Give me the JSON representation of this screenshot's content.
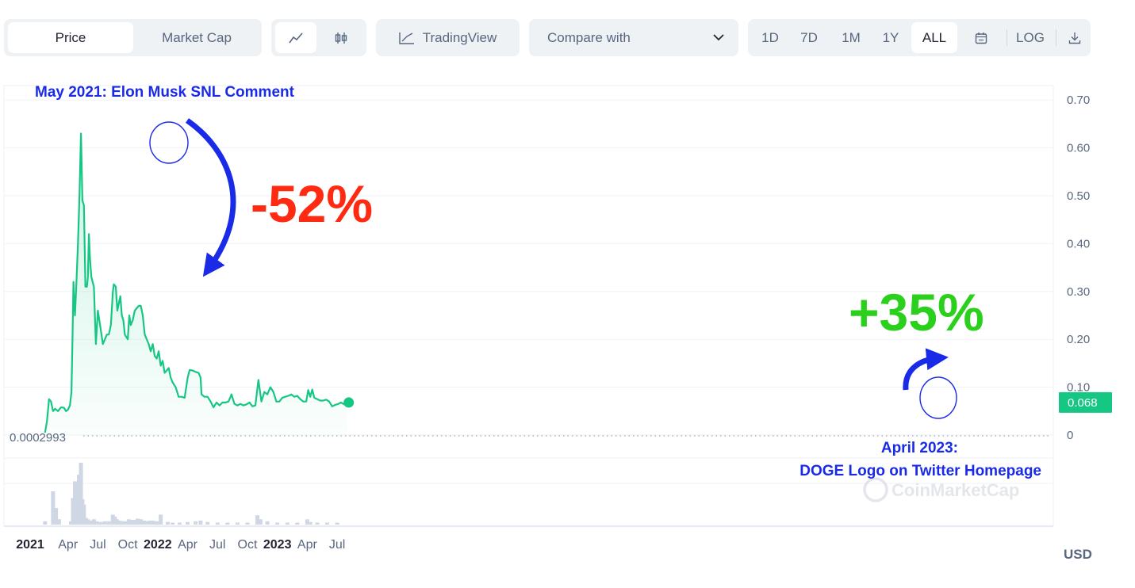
{
  "toolbar": {
    "tab_price": "Price",
    "tab_market_cap": "Market Cap",
    "tradingview_label": "TradingView",
    "compare_label": "Compare with",
    "ranges": [
      "1D",
      "7D",
      "1M",
      "1Y",
      "ALL"
    ],
    "range_active": "ALL",
    "log_label": "LOG"
  },
  "annotations": {
    "top_left": "May 2021: Elon Musk SNL Comment",
    "drop_pct": "-52%",
    "rise_pct": "+35%",
    "bottom_right_line1": "April 2023:",
    "bottom_right_line2": "DOGE Logo on Twitter Homepage",
    "annotation_blue": "#1a2be8",
    "drop_color": "#ff2a12",
    "rise_color": "#2ad01c"
  },
  "watermark": "CoinMarketCap",
  "chart_data": {
    "type": "area",
    "currency_label": "USD",
    "y_ticks": [
      "0",
      "0.10",
      "0.20",
      "0.30",
      "0.40",
      "0.50",
      "0.60",
      "0.70"
    ],
    "ylim": [
      0,
      0.7
    ],
    "min_label": "0.0002993",
    "current_price_label": "0.068",
    "current_price": 0.068,
    "line_color": "#16c784",
    "x_ticks": [
      {
        "label": "2021",
        "bold": true,
        "t": 0
      },
      {
        "label": "Apr",
        "bold": false,
        "t": 3
      },
      {
        "label": "Jul",
        "bold": false,
        "t": 6
      },
      {
        "label": "Oct",
        "bold": false,
        "t": 9
      },
      {
        "label": "2022",
        "bold": true,
        "t": 12
      },
      {
        "label": "Apr",
        "bold": false,
        "t": 15
      },
      {
        "label": "Jul",
        "bold": false,
        "t": 18
      },
      {
        "label": "Oct",
        "bold": false,
        "t": 21
      },
      {
        "label": "2023",
        "bold": true,
        "t": 24
      },
      {
        "label": "Apr",
        "bold": false,
        "t": 27
      },
      {
        "label": "Jul",
        "bold": false,
        "t": 30
      }
    ],
    "price_points": [
      [
        0.7,
        0.005
      ],
      [
        0.9,
        0.03
      ],
      [
        1.1,
        0.075
      ],
      [
        1.3,
        0.07
      ],
      [
        1.5,
        0.05
      ],
      [
        1.7,
        0.055
      ],
      [
        2.0,
        0.05
      ],
      [
        2.3,
        0.058
      ],
      [
        2.6,
        0.057
      ],
      [
        2.8,
        0.05
      ],
      [
        3.0,
        0.053
      ],
      [
        3.2,
        0.062
      ],
      [
        3.35,
        0.09
      ],
      [
        3.45,
        0.2
      ],
      [
        3.55,
        0.32
      ],
      [
        3.7,
        0.25
      ],
      [
        3.85,
        0.32
      ],
      [
        4.0,
        0.4
      ],
      [
        4.15,
        0.5
      ],
      [
        4.3,
        0.63
      ],
      [
        4.45,
        0.49
      ],
      [
        4.6,
        0.48
      ],
      [
        4.75,
        0.31
      ],
      [
        4.9,
        0.31
      ],
      [
        5.0,
        0.33
      ],
      [
        5.1,
        0.42
      ],
      [
        5.2,
        0.37
      ],
      [
        5.35,
        0.33
      ],
      [
        5.6,
        0.31
      ],
      [
        5.8,
        0.19
      ],
      [
        6.0,
        0.26
      ],
      [
        6.25,
        0.225
      ],
      [
        6.5,
        0.19
      ],
      [
        6.7,
        0.2
      ],
      [
        6.9,
        0.21
      ],
      [
        7.1,
        0.21
      ],
      [
        7.3,
        0.23
      ],
      [
        7.5,
        0.3
      ],
      [
        7.6,
        0.315
      ],
      [
        7.8,
        0.31
      ],
      [
        7.95,
        0.26
      ],
      [
        8.1,
        0.275
      ],
      [
        8.25,
        0.29
      ],
      [
        8.4,
        0.25
      ],
      [
        8.55,
        0.24
      ],
      [
        8.7,
        0.21
      ],
      [
        8.85,
        0.205
      ],
      [
        9.0,
        0.2
      ],
      [
        9.15,
        0.25
      ],
      [
        9.3,
        0.23
      ],
      [
        9.5,
        0.24
      ],
      [
        9.7,
        0.26
      ],
      [
        9.9,
        0.265
      ],
      [
        10.1,
        0.27
      ],
      [
        10.3,
        0.27
      ],
      [
        10.5,
        0.25
      ],
      [
        10.7,
        0.21
      ],
      [
        10.9,
        0.2
      ],
      [
        11.1,
        0.19
      ],
      [
        11.3,
        0.175
      ],
      [
        11.5,
        0.19
      ],
      [
        11.7,
        0.165
      ],
      [
        11.9,
        0.16
      ],
      [
        12.1,
        0.175
      ],
      [
        12.3,
        0.145
      ],
      [
        12.5,
        0.155
      ],
      [
        12.7,
        0.13
      ],
      [
        12.9,
        0.135
      ],
      [
        13.1,
        0.14
      ],
      [
        13.3,
        0.12
      ],
      [
        13.5,
        0.11
      ],
      [
        13.8,
        0.1
      ],
      [
        14.1,
        0.08
      ],
      [
        14.4,
        0.08
      ],
      [
        14.7,
        0.078
      ],
      [
        15.0,
        0.12
      ],
      [
        15.2,
        0.136
      ],
      [
        15.5,
        0.135
      ],
      [
        15.8,
        0.132
      ],
      [
        16.1,
        0.13
      ],
      [
        16.3,
        0.12
      ],
      [
        16.4,
        0.085
      ],
      [
        16.7,
        0.08
      ],
      [
        17.0,
        0.08
      ],
      [
        17.3,
        0.07
      ],
      [
        17.6,
        0.058
      ],
      [
        17.9,
        0.068
      ],
      [
        18.2,
        0.062
      ],
      [
        18.5,
        0.068
      ],
      [
        18.8,
        0.068
      ],
      [
        19.1,
        0.07
      ],
      [
        19.4,
        0.085
      ],
      [
        19.7,
        0.065
      ],
      [
        20.0,
        0.062
      ],
      [
        20.3,
        0.065
      ],
      [
        20.6,
        0.062
      ],
      [
        20.9,
        0.064
      ],
      [
        21.2,
        0.068
      ],
      [
        21.5,
        0.06
      ],
      [
        21.8,
        0.062
      ],
      [
        22.1,
        0.115
      ],
      [
        22.4,
        0.07
      ],
      [
        22.7,
        0.09
      ],
      [
        23.0,
        0.085
      ],
      [
        23.3,
        0.1
      ],
      [
        23.6,
        0.09
      ],
      [
        23.9,
        0.07
      ],
      [
        24.2,
        0.07
      ],
      [
        24.5,
        0.078
      ],
      [
        24.8,
        0.08
      ],
      [
        25.1,
        0.082
      ],
      [
        25.4,
        0.085
      ],
      [
        25.7,
        0.08
      ],
      [
        26.0,
        0.082
      ],
      [
        26.3,
        0.075
      ],
      [
        26.6,
        0.07
      ],
      [
        26.9,
        0.07
      ],
      [
        27.1,
        0.094
      ],
      [
        27.3,
        0.08
      ],
      [
        27.5,
        0.095
      ],
      [
        27.7,
        0.078
      ],
      [
        28.0,
        0.075
      ],
      [
        28.3,
        0.072
      ],
      [
        28.6,
        0.072
      ],
      [
        28.9,
        0.074
      ],
      [
        29.2,
        0.07
      ],
      [
        29.5,
        0.06
      ],
      [
        29.8,
        0.063
      ],
      [
        30.1,
        0.065
      ],
      [
        30.4,
        0.068
      ],
      [
        30.7,
        0.064
      ],
      [
        31.0,
        0.068
      ]
    ],
    "volume_points": [
      [
        0.7,
        0.05
      ],
      [
        1.5,
        0.5
      ],
      [
        1.8,
        0.25
      ],
      [
        2.1,
        0.08
      ],
      [
        3.3,
        0.05
      ],
      [
        3.5,
        0.4
      ],
      [
        3.7,
        0.65
      ],
      [
        3.9,
        0.3
      ],
      [
        4.1,
        0.75
      ],
      [
        4.3,
        0.93
      ],
      [
        4.45,
        0.38
      ],
      [
        4.6,
        0.3
      ],
      [
        4.8,
        0.1
      ],
      [
        5.0,
        0.08
      ],
      [
        5.3,
        0.06
      ],
      [
        5.6,
        0.08
      ],
      [
        5.9,
        0.05
      ],
      [
        6.3,
        0.04
      ],
      [
        6.7,
        0.05
      ],
      [
        7.1,
        0.05
      ],
      [
        7.5,
        0.15
      ],
      [
        7.7,
        0.12
      ],
      [
        7.9,
        0.08
      ],
      [
        8.2,
        0.06
      ],
      [
        8.5,
        0.05
      ],
      [
        8.8,
        0.05
      ],
      [
        9.1,
        0.08
      ],
      [
        9.4,
        0.07
      ],
      [
        9.7,
        0.07
      ],
      [
        10.0,
        0.09
      ],
      [
        10.3,
        0.08
      ],
      [
        10.6,
        0.06
      ],
      [
        10.9,
        0.05
      ],
      [
        11.2,
        0.06
      ],
      [
        11.5,
        0.06
      ],
      [
        11.9,
        0.05
      ],
      [
        12.3,
        0.15
      ],
      [
        13.0,
        0.04
      ],
      [
        13.5,
        0.03
      ],
      [
        14.2,
        0.03
      ],
      [
        15.0,
        0.04
      ],
      [
        15.8,
        0.05
      ],
      [
        16.3,
        0.06
      ],
      [
        17.0,
        0.04
      ],
      [
        18.0,
        0.03
      ],
      [
        19.0,
        0.03
      ],
      [
        20.0,
        0.03
      ],
      [
        21.0,
        0.03
      ],
      [
        22.0,
        0.14
      ],
      [
        22.3,
        0.08
      ],
      [
        23.0,
        0.05
      ],
      [
        24.0,
        0.03
      ],
      [
        25.0,
        0.03
      ],
      [
        26.0,
        0.03
      ],
      [
        27.0,
        0.08
      ],
      [
        27.3,
        0.04
      ],
      [
        28.0,
        0.03
      ],
      [
        29.0,
        0.03
      ],
      [
        30.0,
        0.03
      ]
    ]
  }
}
